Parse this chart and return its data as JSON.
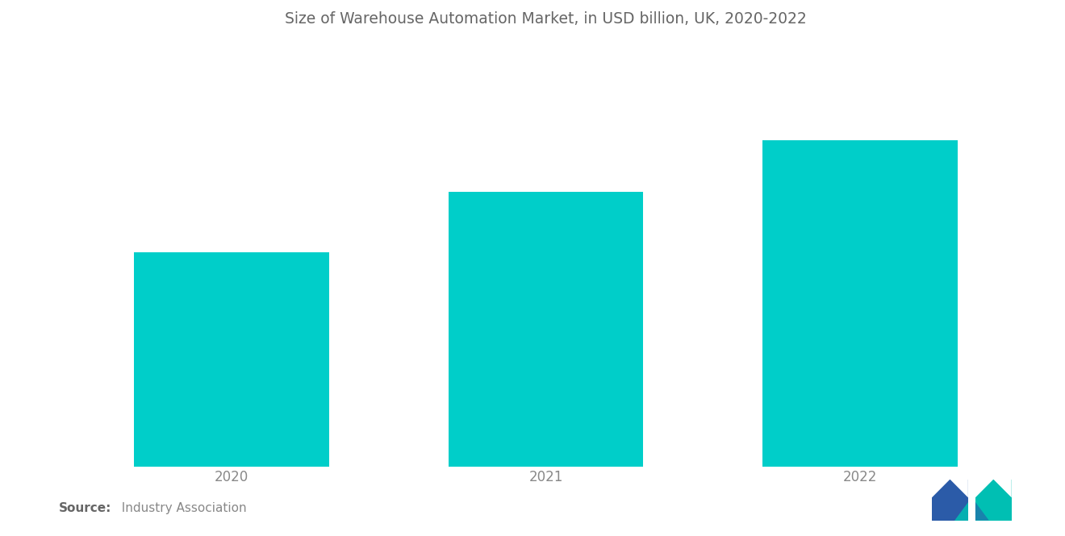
{
  "title": "Size of Warehouse Automation Market, in USD billion, UK, 2020-2022",
  "categories": [
    "2020",
    "2021",
    "2022"
  ],
  "values": [
    1.0,
    1.28,
    1.52
  ],
  "bar_color": "#00CEC9",
  "background_color": "#ffffff",
  "title_fontsize": 13.5,
  "tick_label_fontsize": 12,
  "source_bold": "Source:",
  "source_rest": "  Industry Association",
  "ylim": [
    0,
    1.95
  ],
  "bar_width": 0.62,
  "xlim": [
    -0.55,
    2.55
  ]
}
